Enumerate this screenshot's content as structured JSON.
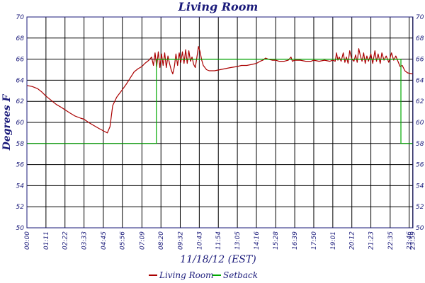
{
  "chart_data": {
    "type": "line",
    "title": "Living Room",
    "xlabel": "11/18/12 (EST)",
    "ylabel": "Degrees F",
    "ylim": [
      50,
      70
    ],
    "xlim": [
      0,
      1440
    ],
    "grid": true,
    "legend": "bottom",
    "y_ticks": [
      "50",
      "52",
      "54",
      "56",
      "58",
      "60",
      "62",
      "64",
      "66",
      "68",
      "70"
    ],
    "x_ticks": [
      {
        "label": "00:00",
        "minute": 0
      },
      {
        "label": "01:11",
        "minute": 71
      },
      {
        "label": "02:22",
        "minute": 142
      },
      {
        "label": "03:33",
        "minute": 213
      },
      {
        "label": "04:45",
        "minute": 285
      },
      {
        "label": "05:56",
        "minute": 356
      },
      {
        "label": "07:09",
        "minute": 429
      },
      {
        "label": "08:20",
        "minute": 500
      },
      {
        "label": "09:32",
        "minute": 572
      },
      {
        "label": "10:43",
        "minute": 643
      },
      {
        "label": "11:54",
        "minute": 714
      },
      {
        "label": "13:05",
        "minute": 785
      },
      {
        "label": "14:16",
        "minute": 856
      },
      {
        "label": "15:28",
        "minute": 928
      },
      {
        "label": "16:39",
        "minute": 999
      },
      {
        "label": "17:50",
        "minute": 1070
      },
      {
        "label": "19:01",
        "minute": 1141
      },
      {
        "label": "20:12",
        "minute": 1212
      },
      {
        "label": "21:23",
        "minute": 1283
      },
      {
        "label": "22:35",
        "minute": 1355
      },
      {
        "label": "23:46",
        "minute": 1426
      },
      {
        "label": "23:59",
        "minute": 1439
      }
    ],
    "series": [
      {
        "name": "Living Room",
        "color": "#aa0000",
        "points": [
          [
            0,
            63.5
          ],
          [
            20,
            63.4
          ],
          [
            40,
            63.2
          ],
          [
            55,
            62.9
          ],
          [
            71,
            62.5
          ],
          [
            90,
            62.1
          ],
          [
            110,
            61.7
          ],
          [
            130,
            61.4
          ],
          [
            142,
            61.2
          ],
          [
            160,
            60.9
          ],
          [
            180,
            60.6
          ],
          [
            200,
            60.4
          ],
          [
            213,
            60.3
          ],
          [
            230,
            60.0
          ],
          [
            250,
            59.7
          ],
          [
            270,
            59.4
          ],
          [
            285,
            59.2
          ],
          [
            300,
            59.0
          ],
          [
            310,
            59.6
          ],
          [
            320,
            61.6
          ],
          [
            335,
            62.4
          ],
          [
            356,
            63.1
          ],
          [
            370,
            63.6
          ],
          [
            385,
            64.2
          ],
          [
            400,
            64.8
          ],
          [
            415,
            65.1
          ],
          [
            429,
            65.3
          ],
          [
            440,
            65.6
          ],
          [
            455,
            65.9
          ],
          [
            465,
            66.2
          ],
          [
            472,
            65.4
          ],
          [
            478,
            66.6
          ],
          [
            484,
            65.3
          ],
          [
            490,
            66.7
          ],
          [
            496,
            65.2
          ],
          [
            502,
            66.5
          ],
          [
            508,
            65.4
          ],
          [
            514,
            66.6
          ],
          [
            520,
            65.2
          ],
          [
            526,
            66.3
          ],
          [
            532,
            65.6
          ],
          [
            538,
            65.0
          ],
          [
            544,
            64.6
          ],
          [
            550,
            65.3
          ],
          [
            556,
            66.5
          ],
          [
            562,
            65.4
          ],
          [
            568,
            66.6
          ],
          [
            574,
            65.7
          ],
          [
            580,
            66.7
          ],
          [
            586,
            65.6
          ],
          [
            592,
            66.9
          ],
          [
            598,
            65.6
          ],
          [
            604,
            66.8
          ],
          [
            610,
            65.8
          ],
          [
            616,
            66.2
          ],
          [
            622,
            65.5
          ],
          [
            628,
            65.2
          ],
          [
            634,
            66.2
          ],
          [
            640,
            67.2
          ],
          [
            646,
            66.7
          ],
          [
            652,
            65.9
          ],
          [
            658,
            65.4
          ],
          [
            664,
            65.2
          ],
          [
            670,
            65.0
          ],
          [
            680,
            64.9
          ],
          [
            700,
            64.9
          ],
          [
            720,
            65.0
          ],
          [
            740,
            65.1
          ],
          [
            760,
            65.2
          ],
          [
            785,
            65.3
          ],
          [
            800,
            65.4
          ],
          [
            820,
            65.4
          ],
          [
            840,
            65.5
          ],
          [
            856,
            65.6
          ],
          [
            870,
            65.8
          ],
          [
            880,
            65.9
          ],
          [
            890,
            66.1
          ],
          [
            900,
            66.0
          ],
          [
            915,
            65.9
          ],
          [
            928,
            65.9
          ],
          [
            940,
            65.8
          ],
          [
            960,
            65.8
          ],
          [
            975,
            65.9
          ],
          [
            985,
            66.2
          ],
          [
            990,
            65.8
          ],
          [
            999,
            65.9
          ],
          [
            1020,
            65.9
          ],
          [
            1040,
            65.8
          ],
          [
            1060,
            65.8
          ],
          [
            1070,
            65.9
          ],
          [
            1090,
            65.8
          ],
          [
            1110,
            65.9
          ],
          [
            1130,
            65.8
          ],
          [
            1141,
            65.9
          ],
          [
            1150,
            65.8
          ],
          [
            1155,
            66.6
          ],
          [
            1160,
            65.9
          ],
          [
            1165,
            66.2
          ],
          [
            1172,
            65.8
          ],
          [
            1180,
            66.6
          ],
          [
            1186,
            65.7
          ],
          [
            1192,
            66.2
          ],
          [
            1198,
            65.6
          ],
          [
            1204,
            66.8
          ],
          [
            1212,
            66.0
          ],
          [
            1220,
            65.8
          ],
          [
            1226,
            66.4
          ],
          [
            1232,
            65.7
          ],
          [
            1238,
            67.0
          ],
          [
            1244,
            66.3
          ],
          [
            1250,
            65.8
          ],
          [
            1256,
            66.6
          ],
          [
            1262,
            65.6
          ],
          [
            1268,
            66.3
          ],
          [
            1274,
            65.8
          ],
          [
            1283,
            66.5
          ],
          [
            1290,
            65.6
          ],
          [
            1298,
            66.8
          ],
          [
            1304,
            65.8
          ],
          [
            1310,
            66.5
          ],
          [
            1318,
            65.6
          ],
          [
            1324,
            66.6
          ],
          [
            1332,
            65.9
          ],
          [
            1340,
            66.3
          ],
          [
            1350,
            65.7
          ],
          [
            1360,
            66.6
          ],
          [
            1368,
            65.9
          ],
          [
            1376,
            66.3
          ],
          [
            1384,
            65.8
          ],
          [
            1392,
            65.3
          ],
          [
            1400,
            65.4
          ],
          [
            1410,
            64.9
          ],
          [
            1420,
            64.7
          ],
          [
            1439,
            64.6
          ]
        ]
      },
      {
        "name": "Setback",
        "color": "#00aa00",
        "points": [
          [
            0,
            58
          ],
          [
            483,
            58
          ],
          [
            483,
            66
          ],
          [
            1395,
            66
          ],
          [
            1395,
            58
          ],
          [
            1439,
            58
          ]
        ]
      }
    ]
  }
}
